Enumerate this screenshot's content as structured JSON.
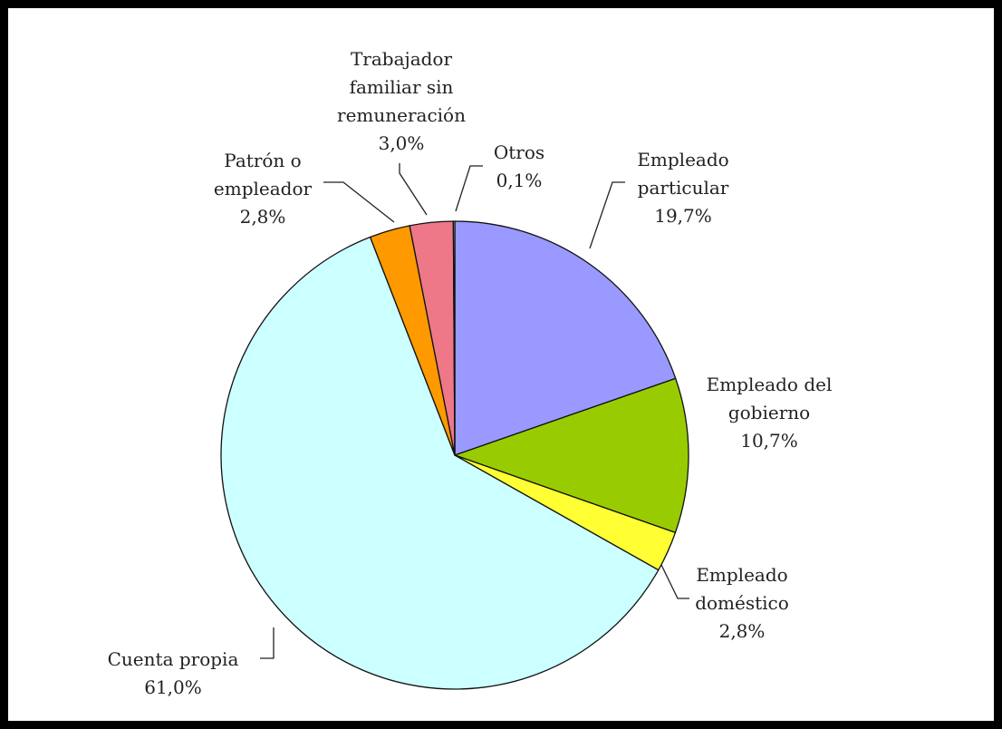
{
  "chart_data": {
    "type": "pie",
    "title": "",
    "start": "top (12 o'clock), clockwise",
    "slices": [
      {
        "label_lines": [
          "Empleado",
          "particular"
        ],
        "value_label": "19,7%",
        "value": 19.7,
        "color": "#9999FF"
      },
      {
        "label_lines": [
          "Empleado del",
          "gobierno"
        ],
        "value_label": "10,7%",
        "value": 10.7,
        "color": "#99CC00"
      },
      {
        "label_lines": [
          "Empleado",
          "doméstico"
        ],
        "value_label": "2,8%",
        "value": 2.8,
        "color": "#FFFF33"
      },
      {
        "label_lines": [
          "Cuenta propia"
        ],
        "value_label": "61,0%",
        "value": 61.0,
        "color": "#CCFFFF"
      },
      {
        "label_lines": [
          "Patrón o",
          "empleador"
        ],
        "value_label": "2,8%",
        "value": 2.8,
        "color": "#FF9900"
      },
      {
        "label_lines": [
          "Trabajador",
          "familiar sin",
          "remuneración"
        ],
        "value_label": "3,0%",
        "value": 3.0,
        "color": "#EE7788"
      },
      {
        "label_lines": [
          "Otros"
        ],
        "value_label": "0,1%",
        "value": 0.1,
        "color": "#FFFFFF"
      }
    ]
  }
}
